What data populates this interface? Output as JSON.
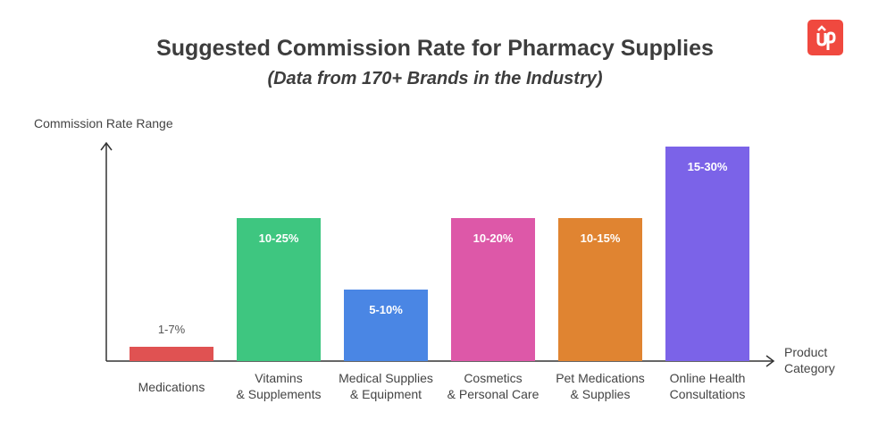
{
  "chart_data": {
    "type": "bar",
    "title": "Suggested Commission Rate for Pharmacy Supplies",
    "subtitle": "(Data from 170+ Brands in the Industry)",
    "ylabel": "Commission Rate Range",
    "xlabel": [
      "Product",
      "Category"
    ],
    "categories": [
      [
        "Medications"
      ],
      [
        "Vitamins",
        "& Supplements"
      ],
      [
        "Medical Supplies",
        "& Equipment"
      ],
      [
        "Cosmetics",
        "& Personal Care"
      ],
      [
        "Pet Medications",
        "& Supplies"
      ],
      [
        "Online Health",
        "Consultations"
      ]
    ],
    "values": [
      1,
      10,
      5,
      10,
      10,
      15
    ],
    "ylim": [
      0,
      15.25
    ],
    "data_labels": [
      "1-7%",
      "10-25%",
      "5-10%",
      "10-20%",
      "10-15%",
      "15-30%"
    ],
    "colors": [
      "#e05252",
      "#3ec680",
      "#4a86e4",
      "#dd58a8",
      "#e08431",
      "#7b63e8"
    ],
    "grid": false
  },
  "logo": {
    "text": "Up",
    "color": "#f0493f"
  }
}
